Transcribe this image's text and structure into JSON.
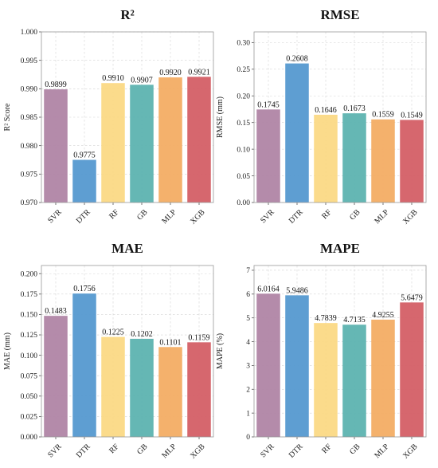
{
  "chart_data": [
    {
      "type": "bar",
      "title": "R²",
      "ylabel": "R² Score",
      "categories": [
        "SVR",
        "DTR",
        "RF",
        "GB",
        "MLP",
        "XGB"
      ],
      "values": [
        0.9899,
        0.9775,
        0.991,
        0.9907,
        0.992,
        0.9921
      ],
      "value_labels": [
        "0.9899",
        "0.9775",
        "0.9910",
        "0.9907",
        "0.9920",
        "0.9921"
      ],
      "ylim": [
        0.97,
        1.0
      ],
      "yticks": [
        0.97,
        0.975,
        0.98,
        0.985,
        0.99,
        0.995,
        1.0
      ],
      "ytick_labels": [
        "0.970",
        "0.975",
        "0.980",
        "0.985",
        "0.990",
        "0.995",
        "1.000"
      ],
      "grid": true
    },
    {
      "type": "bar",
      "title": "RMSE",
      "ylabel": "RMSE (mm)",
      "categories": [
        "SVR",
        "DTR",
        "RF",
        "GB",
        "MLP",
        "XGB"
      ],
      "values": [
        0.1745,
        0.2608,
        0.1646,
        0.1673,
        0.1559,
        0.1549
      ],
      "value_labels": [
        "0.1745",
        "0.2608",
        "0.1646",
        "0.1673",
        "0.1559",
        "0.1549"
      ],
      "ylim": [
        0,
        0.32
      ],
      "yticks": [
        0,
        0.05,
        0.1,
        0.15,
        0.2,
        0.25,
        0.3
      ],
      "ytick_labels": [
        "0.00",
        "0.05",
        "0.10",
        "0.15",
        "0.20",
        "0.25",
        "0.30"
      ],
      "grid": true
    },
    {
      "type": "bar",
      "title": "MAE",
      "ylabel": "MAE (mm)",
      "categories": [
        "SVR",
        "DTR",
        "RF",
        "GB",
        "MLP",
        "XGB"
      ],
      "values": [
        0.1483,
        0.1756,
        0.1225,
        0.1202,
        0.1101,
        0.1159
      ],
      "value_labels": [
        "0.1483",
        "0.1756",
        "0.1225",
        "0.1202",
        "0.1101",
        "0.1159"
      ],
      "ylim": [
        0,
        0.21
      ],
      "yticks": [
        0,
        0.025,
        0.05,
        0.075,
        0.1,
        0.125,
        0.15,
        0.175,
        0.2
      ],
      "ytick_labels": [
        "0.000",
        "0.025",
        "0.050",
        "0.075",
        "0.100",
        "0.125",
        "0.150",
        "0.175",
        "0.200"
      ],
      "grid": true
    },
    {
      "type": "bar",
      "title": "MAPE",
      "ylabel": "MAPE (%)",
      "categories": [
        "SVR",
        "DTR",
        "RF",
        "GB",
        "MLP",
        "XGB"
      ],
      "values": [
        6.0164,
        5.9486,
        4.7839,
        4.7135,
        4.9255,
        5.6479
      ],
      "value_labels": [
        "6.0164",
        "5.9486",
        "4.7839",
        "4.7135",
        "4.9255",
        "5.6479"
      ],
      "ylim": [
        0,
        7.2
      ],
      "yticks": [
        0,
        1,
        2,
        3,
        4,
        5,
        6,
        7
      ],
      "ytick_labels": [
        "0",
        "1",
        "2",
        "3",
        "4",
        "5",
        "6",
        "7"
      ],
      "grid": true
    }
  ],
  "colors": {
    "SVR": "#b085a5",
    "DTR": "#5599d0",
    "RF": "#fbd985",
    "GB": "#5db3b0",
    "MLP": "#f3ad64",
    "XGB": "#d45f66"
  }
}
